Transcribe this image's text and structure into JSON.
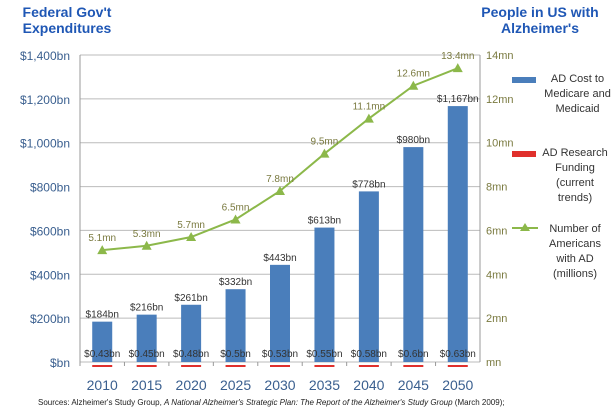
{
  "header": {
    "left_title": "Federal Gov't Expenditures",
    "right_title": "People in US with Alzheimer's"
  },
  "chart_data": {
    "type": "bar+line",
    "categories": [
      "2010",
      "2015",
      "2020",
      "2025",
      "2030",
      "2035",
      "2040",
      "2045",
      "2050"
    ],
    "y_left": {
      "ticks": [
        "$bn",
        "$200bn",
        "$400bn",
        "$600bn",
        "$800bn",
        "$1,000bn",
        "$1,200bn",
        "$1,400bn"
      ],
      "range": [
        0,
        1400
      ]
    },
    "y_right": {
      "ticks": [
        "mn",
        "2mn",
        "4mn",
        "6mn",
        "8mn",
        "10mn",
        "12mn",
        "14mn"
      ],
      "range": [
        0,
        14
      ]
    },
    "grid": true,
    "legend_placement": "right",
    "series": [
      {
        "name": "AD Cost to Medicare and Medicaid",
        "type": "bar",
        "color": "#4a7ebb",
        "values": [
          184,
          216,
          261,
          332,
          443,
          613,
          778,
          980,
          1167
        ],
        "labels": [
          "$184bn",
          "$216bn",
          "$261bn",
          "$332bn",
          "$443bn",
          "$613bn",
          "$778bn",
          "$980bn",
          "$1,167bn"
        ]
      },
      {
        "name": "AD Research Funding (current trends)",
        "type": "bar",
        "color": "#e0302c",
        "values": [
          0.43,
          0.45,
          0.48,
          0.5,
          0.53,
          0.55,
          0.58,
          0.6,
          0.63
        ],
        "labels": [
          "$0.43bn",
          "$0.45bn",
          "$0.48bn",
          "$0.5bn",
          "$0.53bn",
          "$0.55bn",
          "$0.58bn",
          "$0.6bn",
          "$0.63bn"
        ]
      },
      {
        "name": "Number of Americans with AD (millions)",
        "type": "line",
        "axis": "right",
        "color": "#8cb84a",
        "values": [
          5.1,
          5.3,
          5.7,
          6.5,
          7.8,
          9.5,
          11.1,
          12.6,
          13.4
        ],
        "labels": [
          "5.1mn",
          "5.3mn",
          "5.7mn",
          "6.5mn",
          "7.8mn",
          "9.5mn",
          "11.1mn",
          "12.6mn",
          "13.4mn"
        ]
      }
    ]
  },
  "legend": {
    "cost": [
      "AD Cost to",
      "Medicare and",
      "Medicaid"
    ],
    "research": [
      "AD Research",
      "Funding",
      "(current",
      "trends)"
    ],
    "people": [
      "Number of",
      "Americans",
      "with AD",
      "(millions)"
    ]
  },
  "source": {
    "prefix": "Sources: Alzheimer's Study Group, ",
    "title": "A National Alzheimer's Strategic Plan: The Report of the Alzheimer's Study Group",
    "suffix": " (March 2009);"
  }
}
